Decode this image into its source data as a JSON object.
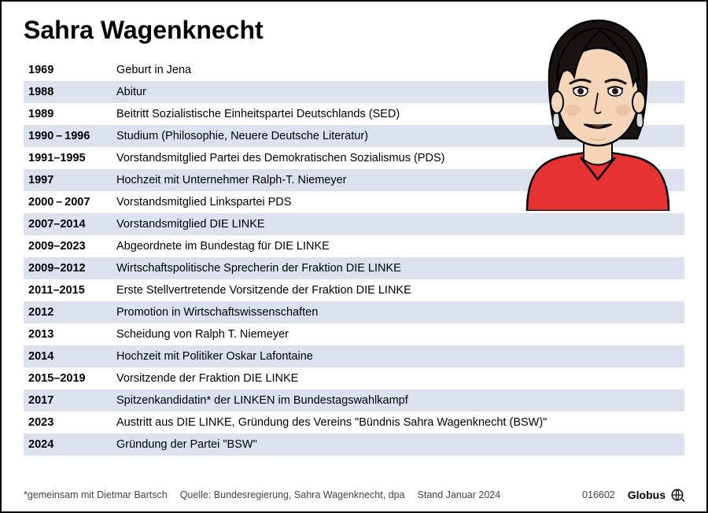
{
  "title": "Sahra Wagenknecht",
  "row_bg_alt": "#dbe2ee",
  "row_bg": "#ffffff",
  "text_color": "#000000",
  "title_fontsize": 32,
  "row_fontsize": 14.5,
  "footer_fontsize": 12.5,
  "timeline": [
    {
      "year": "1969",
      "event": "Geburt in Jena"
    },
    {
      "year": "1988",
      "event": "Abitur"
    },
    {
      "year": "1989",
      "event": "Beitritt Sozialistische Einheitspartei Deutschlands (SED)"
    },
    {
      "year": "1990 – 1996",
      "event": "Studium (Philosophie, Neuere Deutsche Literatur)"
    },
    {
      "year": "1991–1995",
      "event": "Vorstandsmitglied Partei des Demokratischen Sozialismus (PDS)"
    },
    {
      "year": "1997",
      "event": "Hochzeit mit Unternehmer Ralph-T. Niemeyer"
    },
    {
      "year": "2000 – 2007",
      "event": "Vorstandsmitglied Linkspartei PDS"
    },
    {
      "year": "2007–2014",
      "event": "Vorstandsmitglied DIE LINKE"
    },
    {
      "year": "2009–2023",
      "event": "Abgeordnete im Bundestag für DIE LINKE"
    },
    {
      "year": "2009–2012",
      "event": "Wirtschaftspolitische Sprecherin der Fraktion DIE LINKE"
    },
    {
      "year": "2011–2015",
      "event": "Erste Stellvertretende Vorsitzende der Fraktion DIE LINKE"
    },
    {
      "year": "2012",
      "event": "Promotion in Wirtschaftswissenschaften"
    },
    {
      "year": "2013",
      "event": "Scheidung von Ralph T. Niemeyer"
    },
    {
      "year": "2014",
      "event": "Hochzeit mit Politiker Oskar Lafontaine"
    },
    {
      "year": "2015–2019",
      "event": "Vorsitzende der Fraktion DIE LINKE"
    },
    {
      "year": "2017",
      "event": "Spitzenkandidatin* der LINKEN im Bundestagswahlkampf"
    },
    {
      "year": "2023",
      "event": "Austritt aus DIE LINKE, Gründung des Vereins \"Bündnis Sahra Wagenknecht (BSW)\""
    },
    {
      "year": "2024",
      "event": "Gründung der Partei \"BSW\""
    }
  ],
  "footnote": "*gemeinsam mit Dietmar Bartsch",
  "source": "Quelle: Bundesregierung, Sahra Wagenknecht, dpa",
  "date": "Stand Januar 2024",
  "id": "016602",
  "brand": "Globus",
  "portrait": {
    "jacket_color": "#e63232",
    "hair_color": "#1a1410",
    "skin_color": "#f5d5b8",
    "skin_shadow": "#e5b896",
    "lip_color": "#a8544a",
    "earring_color": "#d8dce2"
  }
}
